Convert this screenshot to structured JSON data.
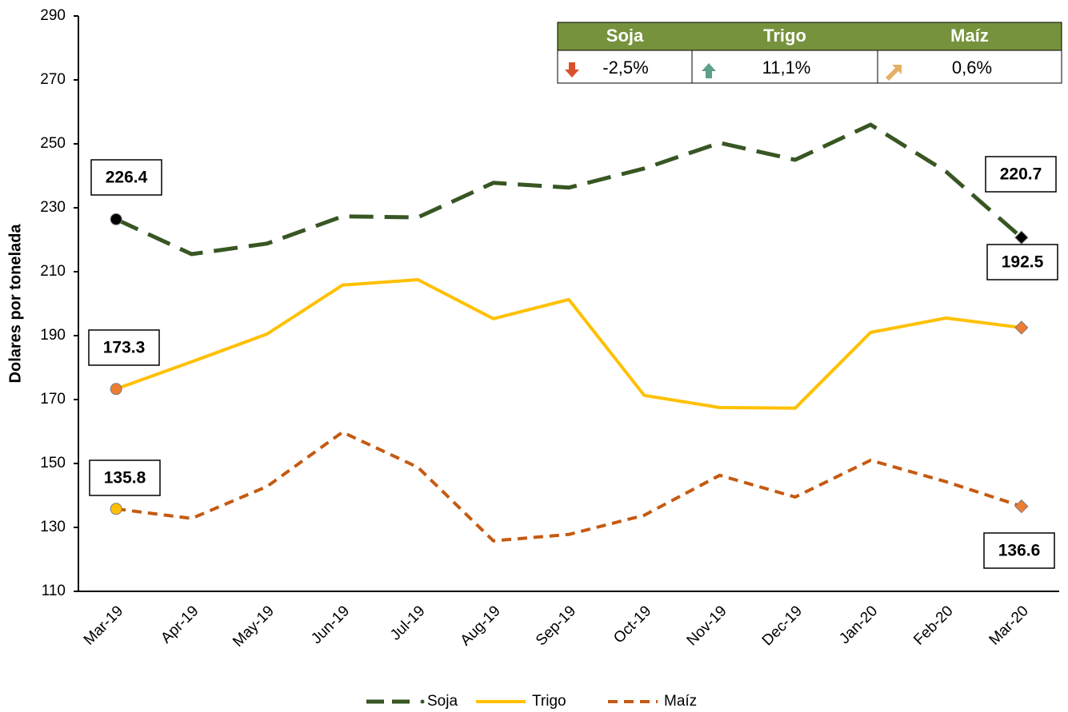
{
  "chart_data": {
    "type": "line",
    "y_label": "Dolares por tonelada",
    "categories": [
      "Mar-19",
      "Apr-19",
      "May-19",
      "Jun-19",
      "Jul-19",
      "Aug-19",
      "Sep-19",
      "Oct-19",
      "Nov-19",
      "Dec-19",
      "Jan-20",
      "Feb-20",
      "Mar-20"
    ],
    "series": [
      {
        "name": "Soja",
        "color": "#375623",
        "values": [
          226.4,
          215.5,
          218.8,
          227.3,
          227,
          237.8,
          236.3,
          242.3,
          250.3,
          245,
          256,
          241.3,
          220.7
        ]
      },
      {
        "name": "Trigo",
        "color": "#ffc000",
        "values": [
          173.3,
          181.8,
          190.5,
          205.8,
          207.5,
          195.3,
          201.3,
          171.3,
          167.5,
          167.3,
          191,
          195.5,
          192.5
        ]
      },
      {
        "name": "Maíz",
        "color": "#c55a11",
        "values": [
          135.8,
          132.8,
          142.8,
          159.8,
          148.8,
          125.8,
          127.8,
          133.8,
          146.3,
          139.5,
          151,
          144.3,
          136.6
        ]
      }
    ],
    "ylim": [
      110,
      290
    ],
    "yticks": [
      110,
      130,
      150,
      170,
      190,
      210,
      230,
      250,
      270,
      290
    ],
    "legend": "bottom"
  },
  "table": {
    "headers": [
      "Soja",
      "Trigo",
      "Maíz"
    ],
    "changes": [
      "-2,5%",
      "11,1%",
      "0,6%"
    ]
  }
}
